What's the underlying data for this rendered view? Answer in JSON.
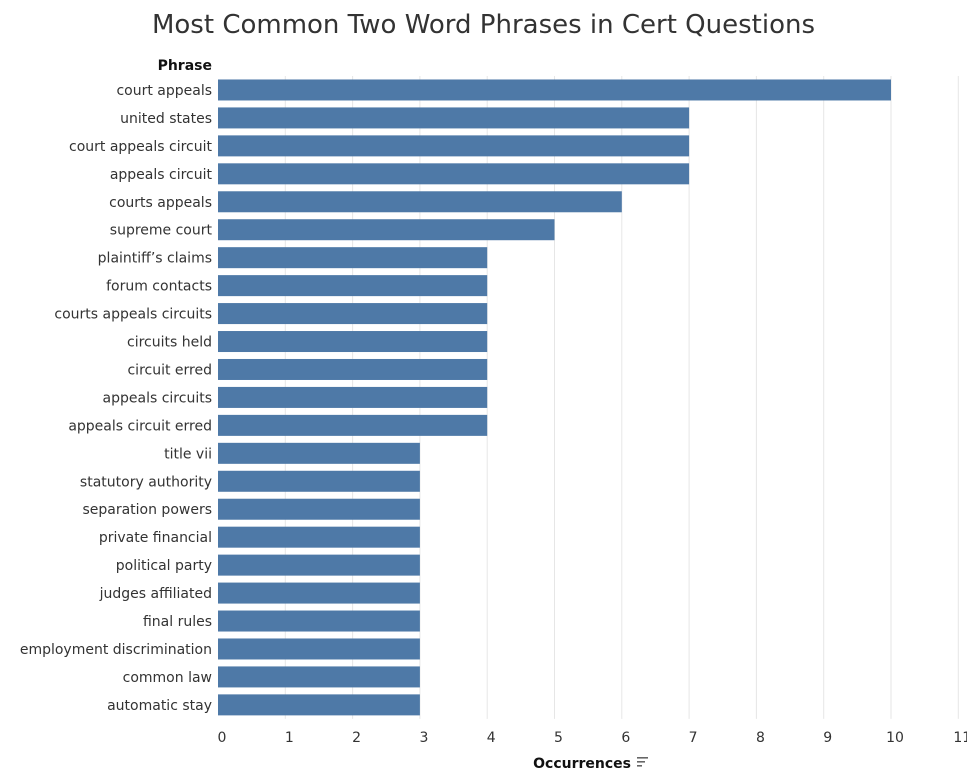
{
  "chart_data": {
    "type": "bar",
    "orientation": "horizontal",
    "title": "Most Common Two Word Phrases in Cert Questions",
    "category_header": "Phrase",
    "xlabel": "Occurrences",
    "xlim": [
      0,
      11
    ],
    "xticks": [
      0,
      1,
      2,
      3,
      4,
      5,
      6,
      7,
      8,
      9,
      10,
      11
    ],
    "grid": true,
    "bar_color": "#4e79a7",
    "sort_icon": "sort-descending-icon",
    "categories": [
      "court appeals",
      "united states",
      "court appeals circuit",
      "appeals circuit",
      "courts appeals",
      "supreme court",
      "plaintiff’s claims",
      "forum contacts",
      "courts appeals circuits",
      "circuits held",
      "circuit erred",
      "appeals circuits",
      "appeals circuit erred",
      "title vii",
      "statutory authority",
      "separation powers",
      "private financial",
      "political party",
      "judges affiliated",
      "final rules",
      "employment discrimination",
      "common law",
      "automatic stay"
    ],
    "values": [
      10,
      7,
      7,
      7,
      6,
      5,
      4,
      4,
      4,
      4,
      4,
      4,
      4,
      3,
      3,
      3,
      3,
      3,
      3,
      3,
      3,
      3,
      3
    ]
  }
}
